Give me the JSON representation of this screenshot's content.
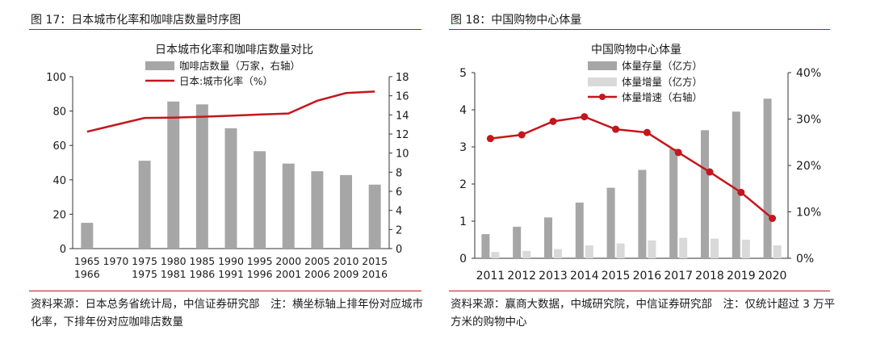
{
  "left_panel": {
    "figure_title": "图 17：日本城市化率和咖啡店数量时序图",
    "note": "资料来源：日本总务省统计局，中信证券研究部　注：横坐标轴上排年份对应城市化率，下排年份对应咖啡店数量"
  },
  "right_panel": {
    "figure_title": "图 18：中国购物中心体量",
    "note": "资料来源：赢商大数据，中城研究院，中信证券研究部　注：仅统计超过 3 万平方米的购物中心"
  },
  "chart_data": [
    {
      "type": "bar+line",
      "title": "日本城市化率和咖啡店数量对比",
      "categories_top": [
        "1965",
        "1970",
        "1975",
        "1980",
        "1985",
        "1990",
        "1995",
        "2000",
        "2005",
        "2010",
        "2015"
      ],
      "categories_bottom": [
        "1966",
        "",
        "1975",
        "1981",
        "1986",
        "1991",
        "1996",
        "2001",
        "2006",
        "2009",
        "2016"
      ],
      "series": [
        {
          "name": "咖啡店数量（万家，右轴）",
          "kind": "bar",
          "axis": "right",
          "values": [
            2.7,
            null,
            9.2,
            15.4,
            15.1,
            12.6,
            10.2,
            8.9,
            8.1,
            7.7,
            6.7
          ]
        },
        {
          "name": "日本:城市化率（%）",
          "kind": "line",
          "axis": "left",
          "values": [
            68,
            72,
            76,
            76.2,
            76.7,
            77.3,
            78,
            78.6,
            86,
            90.5,
            91.4
          ]
        }
      ],
      "left_axis": {
        "range": [
          0,
          100
        ],
        "ticks": [
          "0",
          "20",
          "40",
          "60",
          "80",
          "100"
        ]
      },
      "right_axis": {
        "range": [
          0,
          18
        ],
        "ticks": [
          "0",
          "2",
          "4",
          "6",
          "8",
          "10",
          "12",
          "14",
          "16",
          "18"
        ]
      },
      "colors": {
        "bar": "#a6a6a6",
        "line": "#c4161c"
      }
    },
    {
      "type": "bar+line",
      "title": "中国购物中心体量",
      "categories": [
        "2011",
        "2012",
        "2013",
        "2014",
        "2015",
        "2016",
        "2017",
        "2018",
        "2019",
        "2020"
      ],
      "series": [
        {
          "name": "体量存量（亿方）",
          "kind": "bar",
          "axis": "left",
          "values": [
            0.65,
            0.85,
            1.1,
            1.5,
            1.9,
            2.38,
            2.95,
            3.45,
            3.95,
            4.3
          ]
        },
        {
          "name": "体量增量（亿方）",
          "kind": "bar",
          "axis": "left",
          "values": [
            0.17,
            0.2,
            0.25,
            0.35,
            0.4,
            0.48,
            0.55,
            0.53,
            0.5,
            0.35
          ]
        },
        {
          "name": "体量增速（右轴）",
          "kind": "line",
          "axis": "right",
          "values": [
            25.8,
            26.6,
            29.5,
            30.5,
            27.8,
            27.1,
            22.8,
            18.6,
            14.2,
            8.6
          ]
        }
      ],
      "left_axis": {
        "range": [
          0,
          5
        ],
        "ticks": [
          "0",
          "1",
          "2",
          "3",
          "4",
          "5"
        ]
      },
      "right_axis": {
        "range": [
          0,
          40
        ],
        "ticks": [
          "0%",
          "10%",
          "20%",
          "30%",
          "40%"
        ]
      },
      "colors": {
        "stock": "#a6a6a6",
        "increment": "#d9d9d9",
        "growth": "#c4161c"
      }
    }
  ]
}
